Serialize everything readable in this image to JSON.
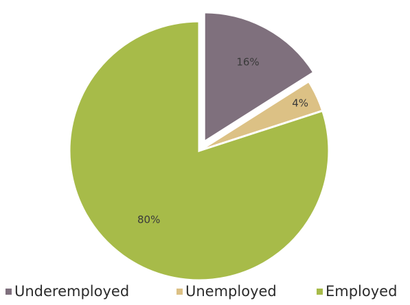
{
  "chart_data": {
    "type": "pie",
    "slices": [
      {
        "name": "Underemployed",
        "value": 16,
        "label": "16%",
        "color": "#7f707d",
        "exploded": true
      },
      {
        "name": "Unemployed",
        "value": 4,
        "label": "4%",
        "color": "#dcc185",
        "exploded": false
      },
      {
        "name": "Employed",
        "value": 80,
        "label": "80%",
        "color": "#a7bb49",
        "exploded": false
      }
    ],
    "legend_position": "bottom"
  }
}
